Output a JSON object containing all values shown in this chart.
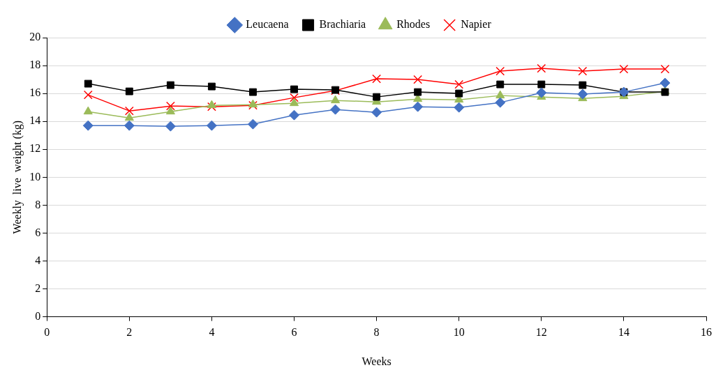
{
  "chart_data": {
    "type": "line",
    "xlabel": "Weeks",
    "ylabel": "Weekly  live  weight (kg)",
    "x": [
      1,
      2,
      3,
      4,
      5,
      6,
      7,
      8,
      9,
      10,
      11,
      12,
      13,
      14,
      15
    ],
    "xlim": [
      0,
      16
    ],
    "xticks": [
      0,
      2,
      4,
      6,
      8,
      10,
      12,
      14,
      16
    ],
    "ylim": [
      0,
      20
    ],
    "yticks": [
      0,
      2,
      4,
      6,
      8,
      10,
      12,
      14,
      16,
      18,
      20
    ],
    "grid": "y",
    "legend": "top",
    "line_style": "solid",
    "series": [
      {
        "name": "Leucaena",
        "color": "#4472c4",
        "marker": "diamond",
        "values": [
          13.7,
          13.7,
          13.65,
          13.7,
          13.8,
          14.45,
          14.85,
          14.65,
          15.05,
          15.0,
          15.35,
          16.05,
          15.95,
          16.1,
          16.75
        ]
      },
      {
        "name": "Brachiaria",
        "color": "#000000",
        "marker": "square",
        "values": [
          16.7,
          16.15,
          16.6,
          16.5,
          16.1,
          16.3,
          16.25,
          15.75,
          16.1,
          16.0,
          16.65,
          16.65,
          16.6,
          16.1,
          16.1
        ]
      },
      {
        "name": "Rhodes",
        "color": "#9bbb59",
        "marker": "triangle",
        "values": [
          14.7,
          14.25,
          14.7,
          15.15,
          15.2,
          15.3,
          15.5,
          15.4,
          15.6,
          15.55,
          15.85,
          15.75,
          15.65,
          15.8,
          16.15
        ]
      },
      {
        "name": "Napier",
        "color": "#ff0000",
        "marker": "cross",
        "values": [
          15.9,
          14.75,
          15.1,
          15.05,
          15.15,
          15.7,
          16.2,
          17.05,
          17.0,
          16.65,
          17.6,
          17.8,
          17.6,
          17.75,
          17.75
        ]
      }
    ]
  }
}
